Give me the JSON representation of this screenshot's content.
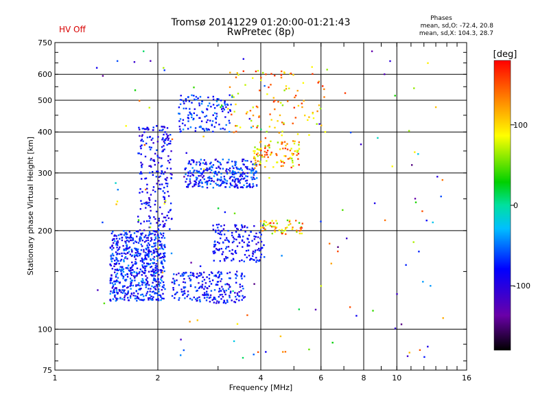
{
  "header": {
    "title_line1": "Tromsø 20141229 01:20:00-01:21:43",
    "title_line2": "RwPretec (8p)",
    "hv_status": "HV Off",
    "status_color": "#d80000",
    "phases_heading": "Phases",
    "phases_mean_o": "mean, sd,O: -72.4, 20.8",
    "phases_mean_x": "mean, sd,X: 104.3, 28.7"
  },
  "chart_data": {
    "type": "scatter",
    "xlabel": "Frequency [MHz]",
    "ylabel": "Stationary phase Virtual Height [km]",
    "xscale": "log",
    "yscale": "log",
    "xlim": [
      1,
      16
    ],
    "ylim": [
      75,
      750
    ],
    "x_ticks": [
      1,
      2,
      4,
      6,
      8,
      10,
      16
    ],
    "x_tick_labels": [
      "1",
      "2",
      "4",
      "6",
      "8",
      "10",
      "16"
    ],
    "y_ticks": [
      75,
      100,
      200,
      300,
      400,
      500,
      600,
      750
    ],
    "y_tick_labels": [
      "75",
      "100",
      "200",
      "300",
      "400",
      "500",
      "600",
      "750"
    ],
    "grid": true,
    "colorbar": {
      "label": "[deg]",
      "range": [
        -180,
        180
      ],
      "ticks": [
        100,
        0,
        -100
      ],
      "tick_labels": [
        "100",
        "0",
        "-100"
      ],
      "colormap": "rainbow (black-purple-blue-cyan-green-yellow-red)"
    },
    "clusters": [
      {
        "f": [
          1.45,
          2.1
        ],
        "h": [
          122,
          200
        ],
        "phase": [
          -110,
          -40
        ],
        "n": 650
      },
      {
        "f": [
          1.75,
          2.2
        ],
        "h": [
          200,
          420
        ],
        "phase": [
          -115,
          -60
        ],
        "n": 220
      },
      {
        "f": [
          2.2,
          3.6
        ],
        "h": [
          120,
          150
        ],
        "phase": [
          -110,
          -50
        ],
        "n": 220
      },
      {
        "f": [
          2.4,
          3.9
        ],
        "h": [
          270,
          330
        ],
        "phase": [
          -110,
          -40
        ],
        "n": 300
      },
      {
        "f": [
          2.3,
          3.3
        ],
        "h": [
          400,
          520
        ],
        "phase": [
          -100,
          -40
        ],
        "n": 130
      },
      {
        "f": [
          2.9,
          4.1
        ],
        "h": [
          160,
          210
        ],
        "phase": [
          -110,
          -60
        ],
        "n": 160
      },
      {
        "f": [
          3.8,
          5.2
        ],
        "h": [
          310,
          380
        ],
        "phase": [
          60,
          170
        ],
        "n": 100
      },
      {
        "f": [
          4.0,
          5.3
        ],
        "h": [
          195,
          215
        ],
        "phase": [
          40,
          170
        ],
        "n": 60
      },
      {
        "f": [
          3.2,
          6.2
        ],
        "h": [
          380,
          620
        ],
        "phase": [
          60,
          170
        ],
        "n": 110
      },
      {
        "f": [
          1.3,
          14.0
        ],
        "h": [
          80,
          720
        ],
        "phase": [
          -150,
          160
        ],
        "n": 130
      }
    ]
  }
}
